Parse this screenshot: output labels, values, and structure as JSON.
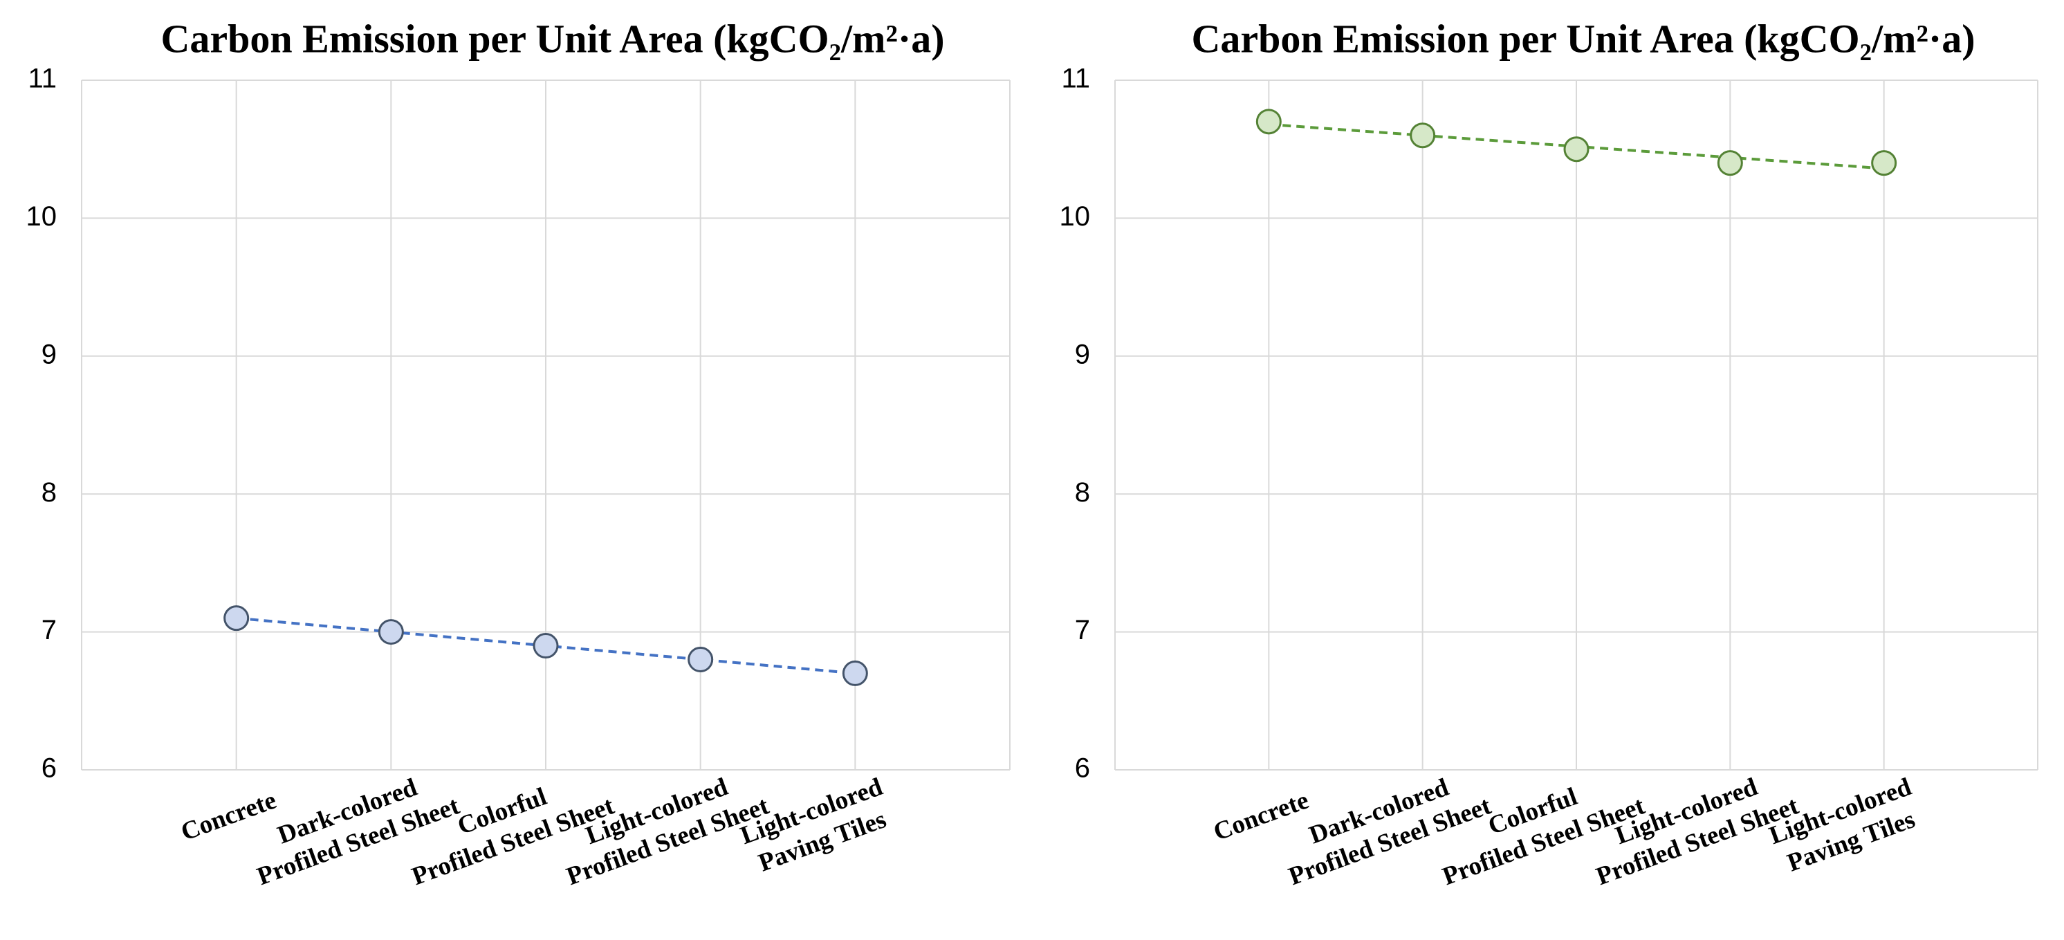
{
  "chart_data": [
    {
      "type": "line",
      "title": "Carbon Emission per Unit Area (kgCO₂/m²·a)",
      "categories": [
        "Concrete",
        "Dark-colored\nProfiled Steel Sheet",
        "Colorful\nProfiled Steel Sheet",
        "Light-colored\nProfiled Steel Sheet",
        "Light-colored\nPaving Tiles"
      ],
      "values": [
        7.1,
        7.0,
        6.9,
        6.8,
        6.7
      ],
      "color": "#4472c4",
      "marker_fill": "#cdd8ef",
      "marker_stroke": "#44546a",
      "trendline": "linear",
      "ylim": [
        6,
        11
      ],
      "yticks": [
        6,
        7,
        8,
        9,
        10,
        11
      ],
      "grid": true
    },
    {
      "type": "line",
      "title": "Carbon Emission per Unit Area (kgCO₂/m²·a)",
      "categories": [
        "Concrete",
        "Dark-colored\nProfiled Steel Sheet",
        "Colorful\nProfiled Steel Sheet",
        "Light-colored\nProfiled Steel Sheet",
        "Light-colored\nPaving Tiles"
      ],
      "values": [
        10.7,
        10.6,
        10.5,
        10.4,
        10.4
      ],
      "color": "#5b9b3a",
      "marker_fill": "#d6e8c8",
      "marker_stroke": "#548235",
      "trendline": "linear",
      "ylim": [
        6,
        11
      ],
      "yticks": [
        6,
        7,
        8,
        9,
        10,
        11
      ],
      "grid": true
    }
  ]
}
